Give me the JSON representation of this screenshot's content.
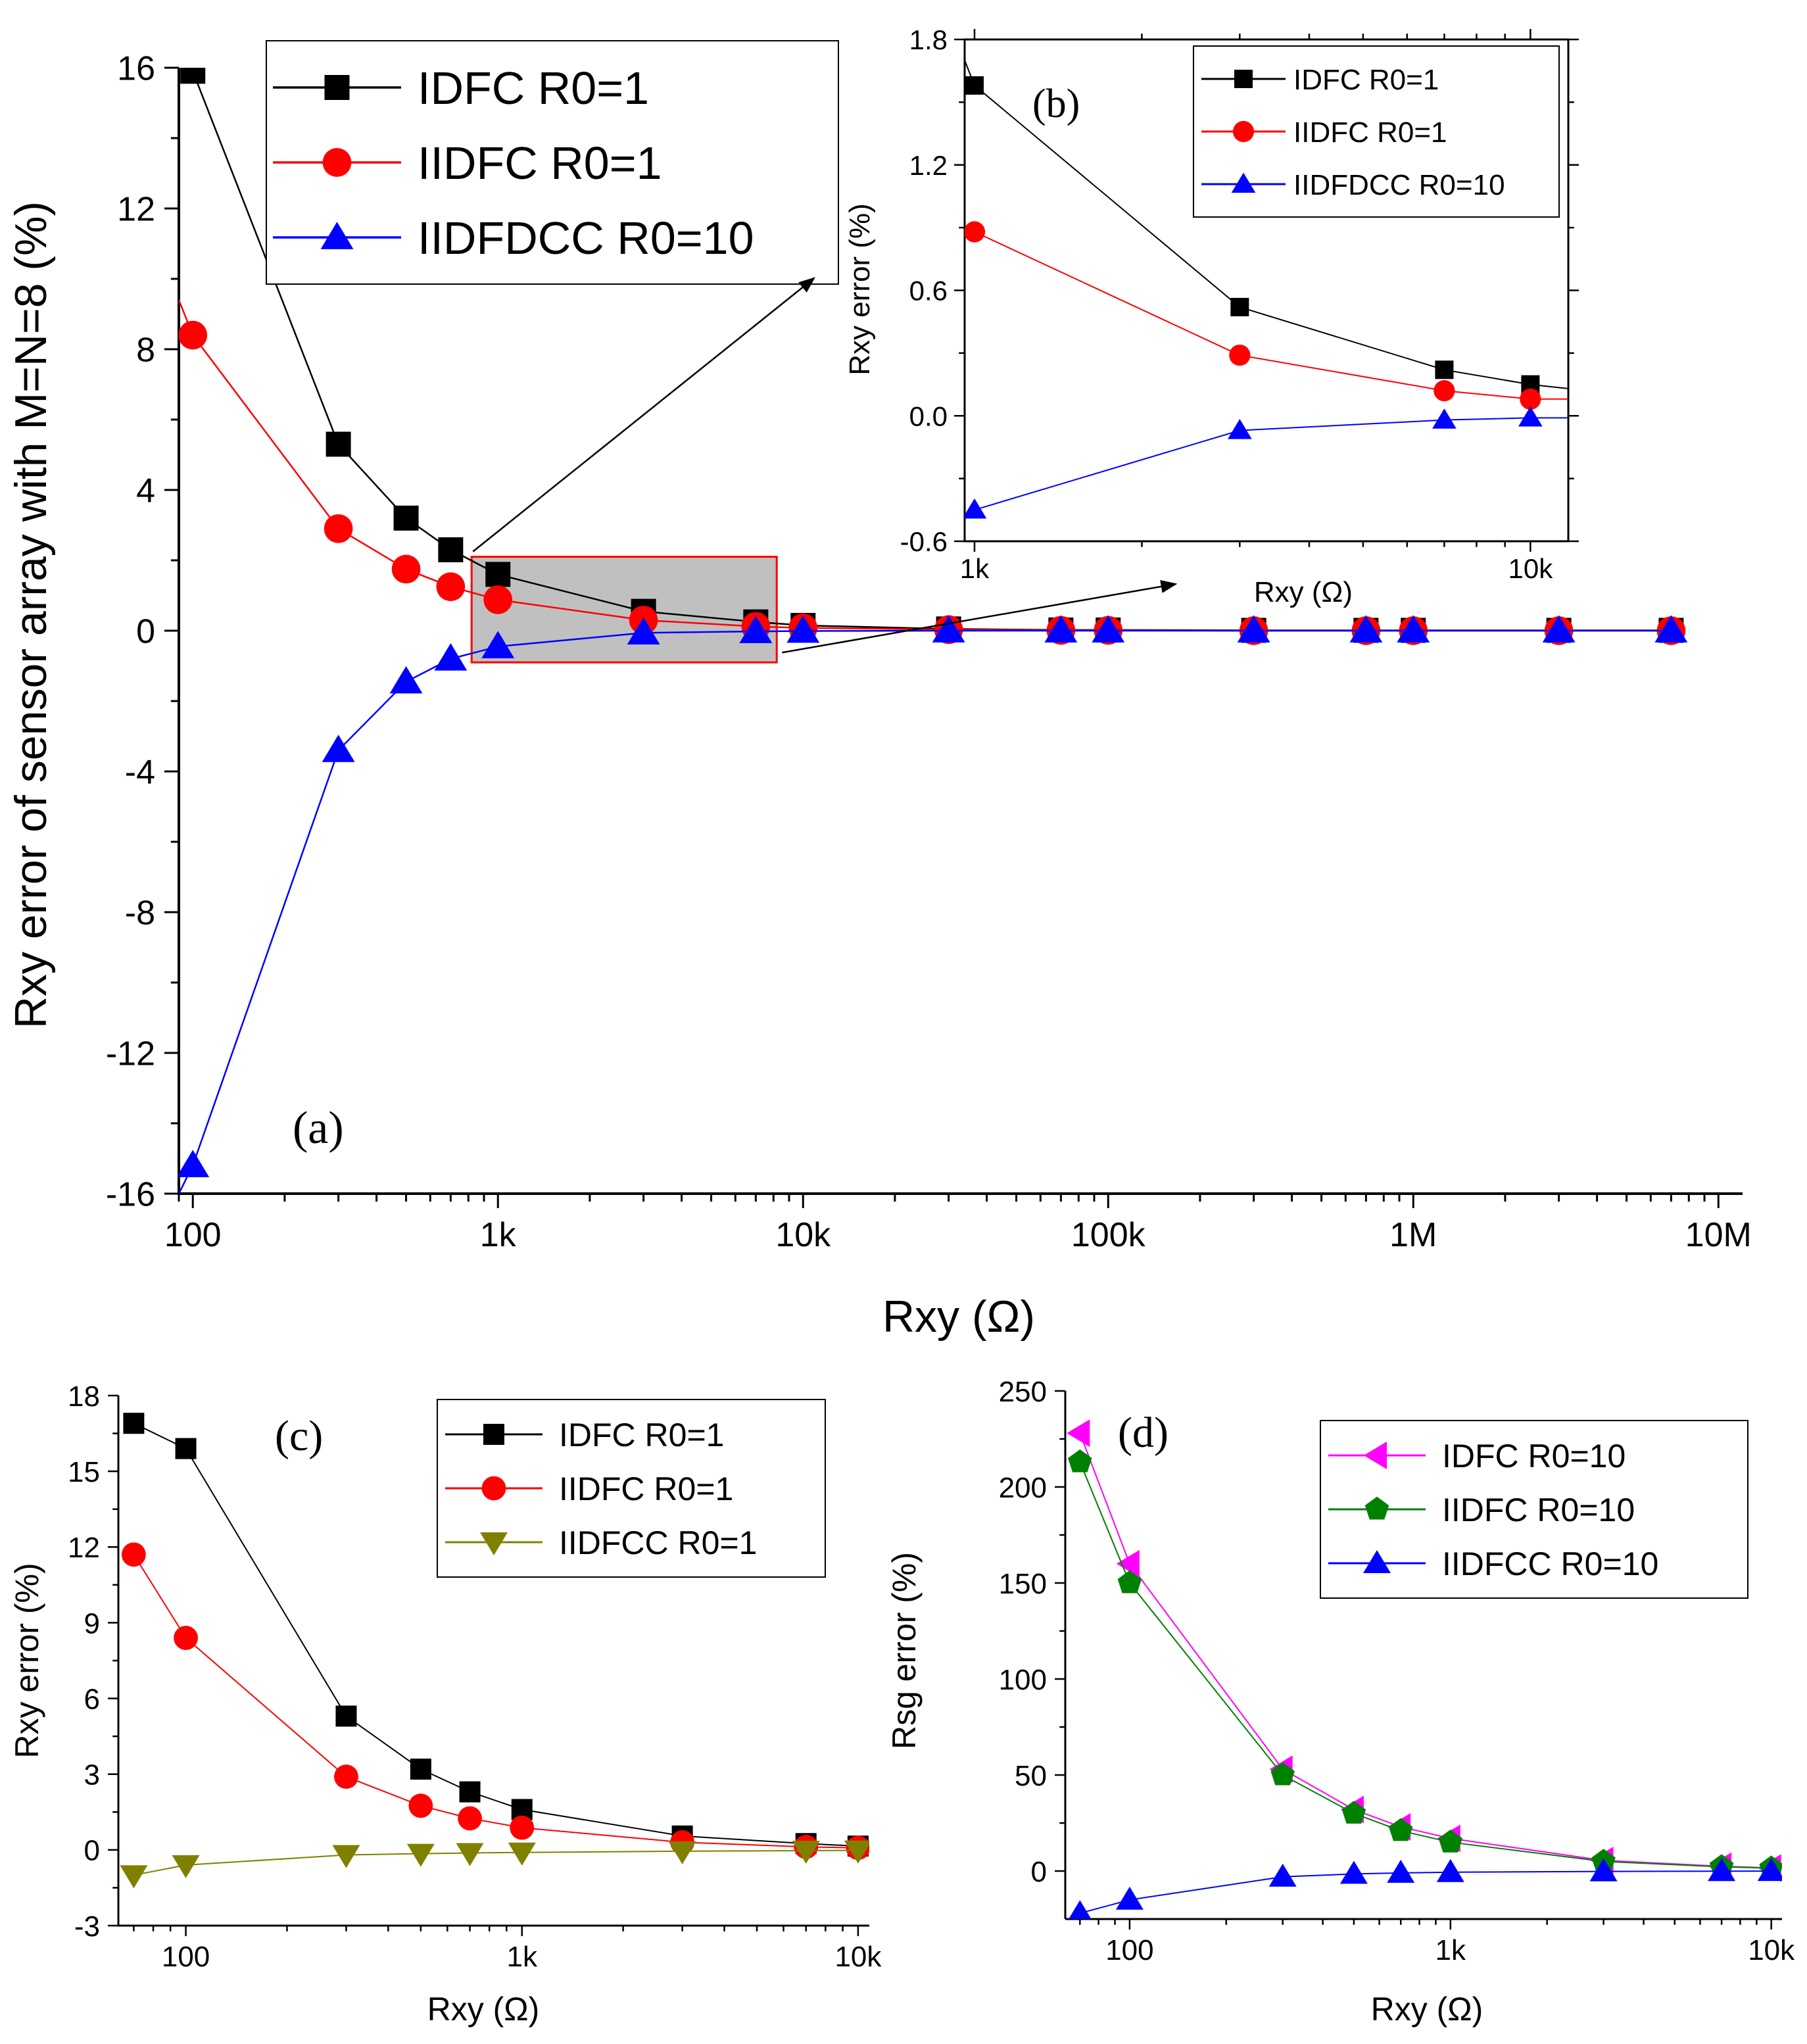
{
  "chart_data": [
    {
      "id": "a",
      "type": "line",
      "panel_label": "(a)",
      "xscale": "log",
      "xlim": [
        90,
        12000000
      ],
      "ylim": [
        -16,
        16
      ],
      "yticks": [
        -16,
        -12,
        -8,
        -4,
        0,
        4,
        8,
        12,
        16
      ],
      "ytick_labels": [
        "-16",
        "-12",
        "-8",
        "-4",
        "0",
        "4",
        "8",
        "12",
        "16"
      ],
      "xticks": [
        100,
        1000,
        10000,
        100000,
        1000000,
        10000000
      ],
      "xtick_labels": [
        "100",
        "1k",
        "10k",
        "100k",
        "1M",
        "10M"
      ],
      "xlabel": "Rxy (Ω)",
      "ylabel": "Rxy error of sensor array with M=N=8 (%)",
      "legend_position": "top-left",
      "zoom_box": {
        "x": [
          820,
          8200
        ],
        "y": [
          -0.9,
          2.1
        ]
      },
      "series": [
        {
          "name": "IDFC R0=1",
          "color": "#000000",
          "marker": "square",
          "x": [
            100,
            300,
            500,
            700,
            1000,
            3000,
            7000,
            10000,
            30000,
            70000,
            100000,
            300000,
            700000,
            1000000,
            3000000,
            7000000
          ],
          "y": [
            15.9,
            5.3,
            3.2,
            2.3,
            1.6,
            0.55,
            0.25,
            0.15,
            0.05,
            0.02,
            0.02,
            0.01,
            0.01,
            0.01,
            0.01,
            0.01
          ]
        },
        {
          "name": "IIDFC R0=1",
          "color": "#ff0000",
          "marker": "circle",
          "line_start": [
            90,
            9.4
          ],
          "x": [
            100,
            300,
            500,
            700,
            1000,
            3000,
            7000,
            10000,
            30000,
            70000,
            100000,
            300000,
            700000,
            1000000,
            3000000,
            7000000
          ],
          "y": [
            8.4,
            2.9,
            1.75,
            1.25,
            0.88,
            0.3,
            0.12,
            0.08,
            0.03,
            0.01,
            0.01,
            0.0,
            0.0,
            0.0,
            0.0,
            0.0
          ]
        },
        {
          "name": "IIDFDCC R0=10",
          "color": "#0000ff",
          "marker": "triangle-up",
          "line_start": [
            90,
            -16
          ],
          "x": [
            100,
            300,
            500,
            700,
            1000,
            3000,
            7000,
            10000,
            30000,
            70000,
            100000,
            300000,
            700000,
            1000000,
            3000000,
            7000000
          ],
          "y": [
            -15.2,
            -3.4,
            -1.45,
            -0.8,
            -0.45,
            -0.06,
            -0.02,
            -0.01,
            0.0,
            0.0,
            0.0,
            0.0,
            0.0,
            0.0,
            0.0,
            0.0
          ]
        }
      ]
    },
    {
      "id": "b",
      "type": "line",
      "panel_label": "(b)",
      "xscale": "log",
      "xlim": [
        960,
        11700
      ],
      "ylim": [
        -0.6,
        1.8
      ],
      "yticks": [
        -0.6,
        0,
        0.6,
        1.2,
        1.8
      ],
      "ytick_labels": [
        "-0.6",
        "0.0",
        "0.6",
        "1.2",
        "1.8"
      ],
      "xticks": [
        1000,
        10000
      ],
      "xtick_labels": [
        "1k",
        "10k"
      ],
      "xlabel": "Rxy (Ω)",
      "ylabel": "Rxy error (%)",
      "legend_position": "top-right",
      "series": [
        {
          "name": "IDFC R0=1",
          "color": "#000000",
          "marker": "square",
          "line_start": [
            960,
            1.7
          ],
          "line_end": [
            11700,
            0.13
          ],
          "x": [
            1000,
            3000,
            7000,
            10000
          ],
          "y": [
            1.58,
            0.52,
            0.22,
            0.15
          ]
        },
        {
          "name": "IIDFC R0=1",
          "color": "#ff0000",
          "marker": "circle",
          "line_end": [
            11700,
            0.08
          ],
          "x": [
            1000,
            3000,
            7000,
            10000
          ],
          "y": [
            0.88,
            0.29,
            0.12,
            0.08
          ]
        },
        {
          "name": "IIDFDCC R0=10",
          "color": "#0000ff",
          "marker": "triangle-up",
          "line_end": [
            11700,
            -0.01
          ],
          "x": [
            1000,
            3000,
            7000,
            10000
          ],
          "y": [
            -0.45,
            -0.07,
            -0.02,
            -0.01
          ]
        }
      ]
    },
    {
      "id": "c",
      "type": "line",
      "panel_label": "(c)",
      "xscale": "log",
      "xlim": [
        63,
        10800
      ],
      "ylim": [
        -3,
        18
      ],
      "yticks": [
        -3,
        0,
        3,
        6,
        9,
        12,
        15,
        18
      ],
      "ytick_labels": [
        "-3",
        "0",
        "3",
        "6",
        "9",
        "12",
        "15",
        "18"
      ],
      "xticks": [
        100,
        1000,
        10000
      ],
      "xtick_labels": [
        "100",
        "1k",
        "10k"
      ],
      "xlabel": "Rxy (Ω)",
      "ylabel": "Rxy error (%)",
      "legend_position": "top-right",
      "series": [
        {
          "name": "IDFC R0=1",
          "color": "#000000",
          "marker": "square",
          "x": [
            70,
            100,
            300,
            500,
            700,
            1000,
            3000,
            7000,
            10000
          ],
          "y": [
            16.9,
            15.9,
            5.3,
            3.2,
            2.3,
            1.6,
            0.55,
            0.25,
            0.15
          ]
        },
        {
          "name": "IIDFC R0=1",
          "color": "#ff0000",
          "marker": "circle",
          "x": [
            70,
            100,
            300,
            500,
            700,
            1000,
            3000,
            7000,
            10000
          ],
          "y": [
            11.7,
            8.4,
            2.9,
            1.75,
            1.25,
            0.88,
            0.3,
            0.12,
            0.08
          ]
        },
        {
          "name": "IIDFCC R0=1",
          "color": "#808000",
          "marker": "triangle-down",
          "x": [
            70,
            100,
            300,
            500,
            700,
            1000,
            3000,
            7000,
            10000
          ],
          "y": [
            -1.0,
            -0.6,
            -0.2,
            -0.15,
            -0.12,
            -0.1,
            -0.05,
            -0.03,
            -0.02
          ]
        }
      ]
    },
    {
      "id": "d",
      "type": "line",
      "panel_label": "(d)",
      "xscale": "log",
      "xlim": [
        63,
        10800
      ],
      "ylim": [
        -25,
        250
      ],
      "yticks": [
        0,
        50,
        100,
        150,
        200,
        250
      ],
      "ytick_labels": [
        "0",
        "50",
        "100",
        "150",
        "200",
        "250"
      ],
      "xticks": [
        100,
        1000,
        10000
      ],
      "xtick_labels": [
        "100",
        "1k",
        "10k"
      ],
      "xlabel": "Rxy (Ω)",
      "ylabel": "Rsg error (%)",
      "legend_position": "top-right",
      "series": [
        {
          "name": "IDFC  R0=10",
          "color": "#ff00ff",
          "marker": "triangle-left",
          "x": [
            70,
            100,
            300,
            500,
            700,
            1000,
            3000,
            7000,
            10000
          ],
          "y": [
            228,
            160,
            53,
            32,
            23,
            17,
            5.5,
            2.5,
            1.6
          ]
        },
        {
          "name": "IIDFC R0=10",
          "color": "#008000",
          "marker": "pentagon",
          "x": [
            70,
            100,
            300,
            500,
            700,
            1000,
            3000,
            7000,
            10000
          ],
          "y": [
            213,
            150,
            50,
            30,
            21,
            15,
            5,
            2.2,
            1.5
          ]
        },
        {
          "name": "IIDFCC  R0=10",
          "color": "#0000ff",
          "marker": "triangle-up",
          "x": [
            70,
            100,
            300,
            500,
            700,
            1000,
            3000,
            7000,
            10000
          ],
          "y": [
            -22,
            -15,
            -3,
            -1.5,
            -1,
            -0.6,
            -0.2,
            -0.1,
            -0.05
          ]
        }
      ]
    }
  ]
}
